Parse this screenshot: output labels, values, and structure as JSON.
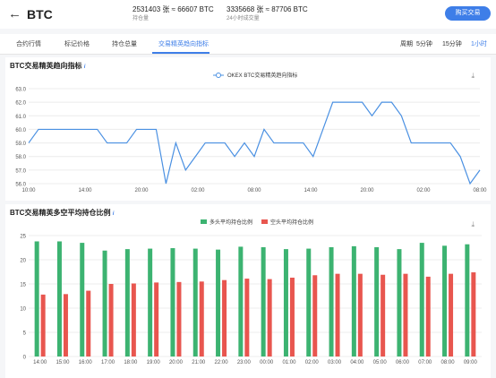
{
  "header": {
    "back_label": "←",
    "title": "BTC",
    "stat1_value": "2531403 张 ≈ 66607 BTC",
    "stat1_label": "持仓量",
    "stat2_value": "3335668 张 ≈ 87706 BTC",
    "stat2_label": "24小时成交量",
    "buy_button": "购买交易"
  },
  "tabs": [
    {
      "label": "合约行情"
    },
    {
      "label": "标记价格"
    },
    {
      "label": "持仓总量"
    },
    {
      "label": "交易精英趋向指标"
    }
  ],
  "period": {
    "label": "周期",
    "options": [
      "5分钟",
      "15分钟",
      "1小时"
    ],
    "selected": "1小时"
  },
  "chart1_panel": {
    "title": "BTC交易精英趋向指标",
    "info_icon": "i",
    "download_icon": "download-icon"
  },
  "chart2_panel": {
    "title": "BTC交易精英多空平均持仓比例",
    "info_icon": "i",
    "download_icon": "download-icon"
  },
  "colors": {
    "accent": "#3e7ee8",
    "line": "#4a90e2",
    "long": "#3cb371",
    "short": "#e8564f"
  },
  "chart_data": [
    {
      "type": "line",
      "title": "",
      "series": [
        {
          "name": "OKEX BTC交易精英趋向指标",
          "values": [
            59,
            60,
            60,
            60,
            60,
            60,
            60,
            60,
            59,
            59,
            59,
            60,
            60,
            60,
            56,
            59,
            57,
            58,
            59,
            59,
            59,
            58,
            59,
            58,
            60,
            59,
            59,
            59,
            59,
            58,
            60,
            62,
            62,
            62,
            62,
            61,
            62,
            62,
            61,
            59,
            59,
            59,
            59,
            59,
            58,
            56,
            57
          ]
        }
      ],
      "xticks": [
        "10:00",
        "14:00",
        "20:00",
        "02:00",
        "08:00",
        "14:00",
        "20:00",
        "02:00",
        "08:00"
      ],
      "yticks": [
        56.0,
        57.0,
        58.0,
        59.0,
        60.0,
        61.0,
        62.0,
        63.0
      ],
      "ylim": [
        56,
        63
      ],
      "grid": true,
      "legend": "top"
    },
    {
      "type": "bar",
      "title": "",
      "categories": [
        "14:00",
        "15:00",
        "16:00",
        "17:00",
        "18:00",
        "19:00",
        "20:00",
        "21:00",
        "22:00",
        "23:00",
        "00:00",
        "01:00",
        "02:00",
        "03:00",
        "04:00",
        "05:00",
        "06:00",
        "07:00",
        "08:00",
        "09:00"
      ],
      "series": [
        {
          "name": "多头平均持仓比例",
          "values": [
            23.8,
            23.8,
            23.5,
            21.9,
            22.2,
            22.3,
            22.4,
            22.3,
            22.1,
            22.7,
            22.6,
            22.2,
            22.3,
            22.6,
            22.8,
            22.6,
            22.2,
            23.5,
            22.9,
            23.2
          ]
        },
        {
          "name": "空头平均持仓比例",
          "values": [
            12.8,
            12.9,
            13.6,
            15.0,
            15.1,
            15.3,
            15.4,
            15.5,
            15.8,
            16.1,
            16.0,
            16.3,
            16.8,
            17.1,
            17.1,
            16.9,
            17.1,
            16.5,
            17.1,
            17.4
          ]
        }
      ],
      "yticks": [
        0,
        5,
        10,
        15,
        20,
        25
      ],
      "ylim": [
        0,
        25
      ],
      "grid": true,
      "legend": "top"
    }
  ]
}
